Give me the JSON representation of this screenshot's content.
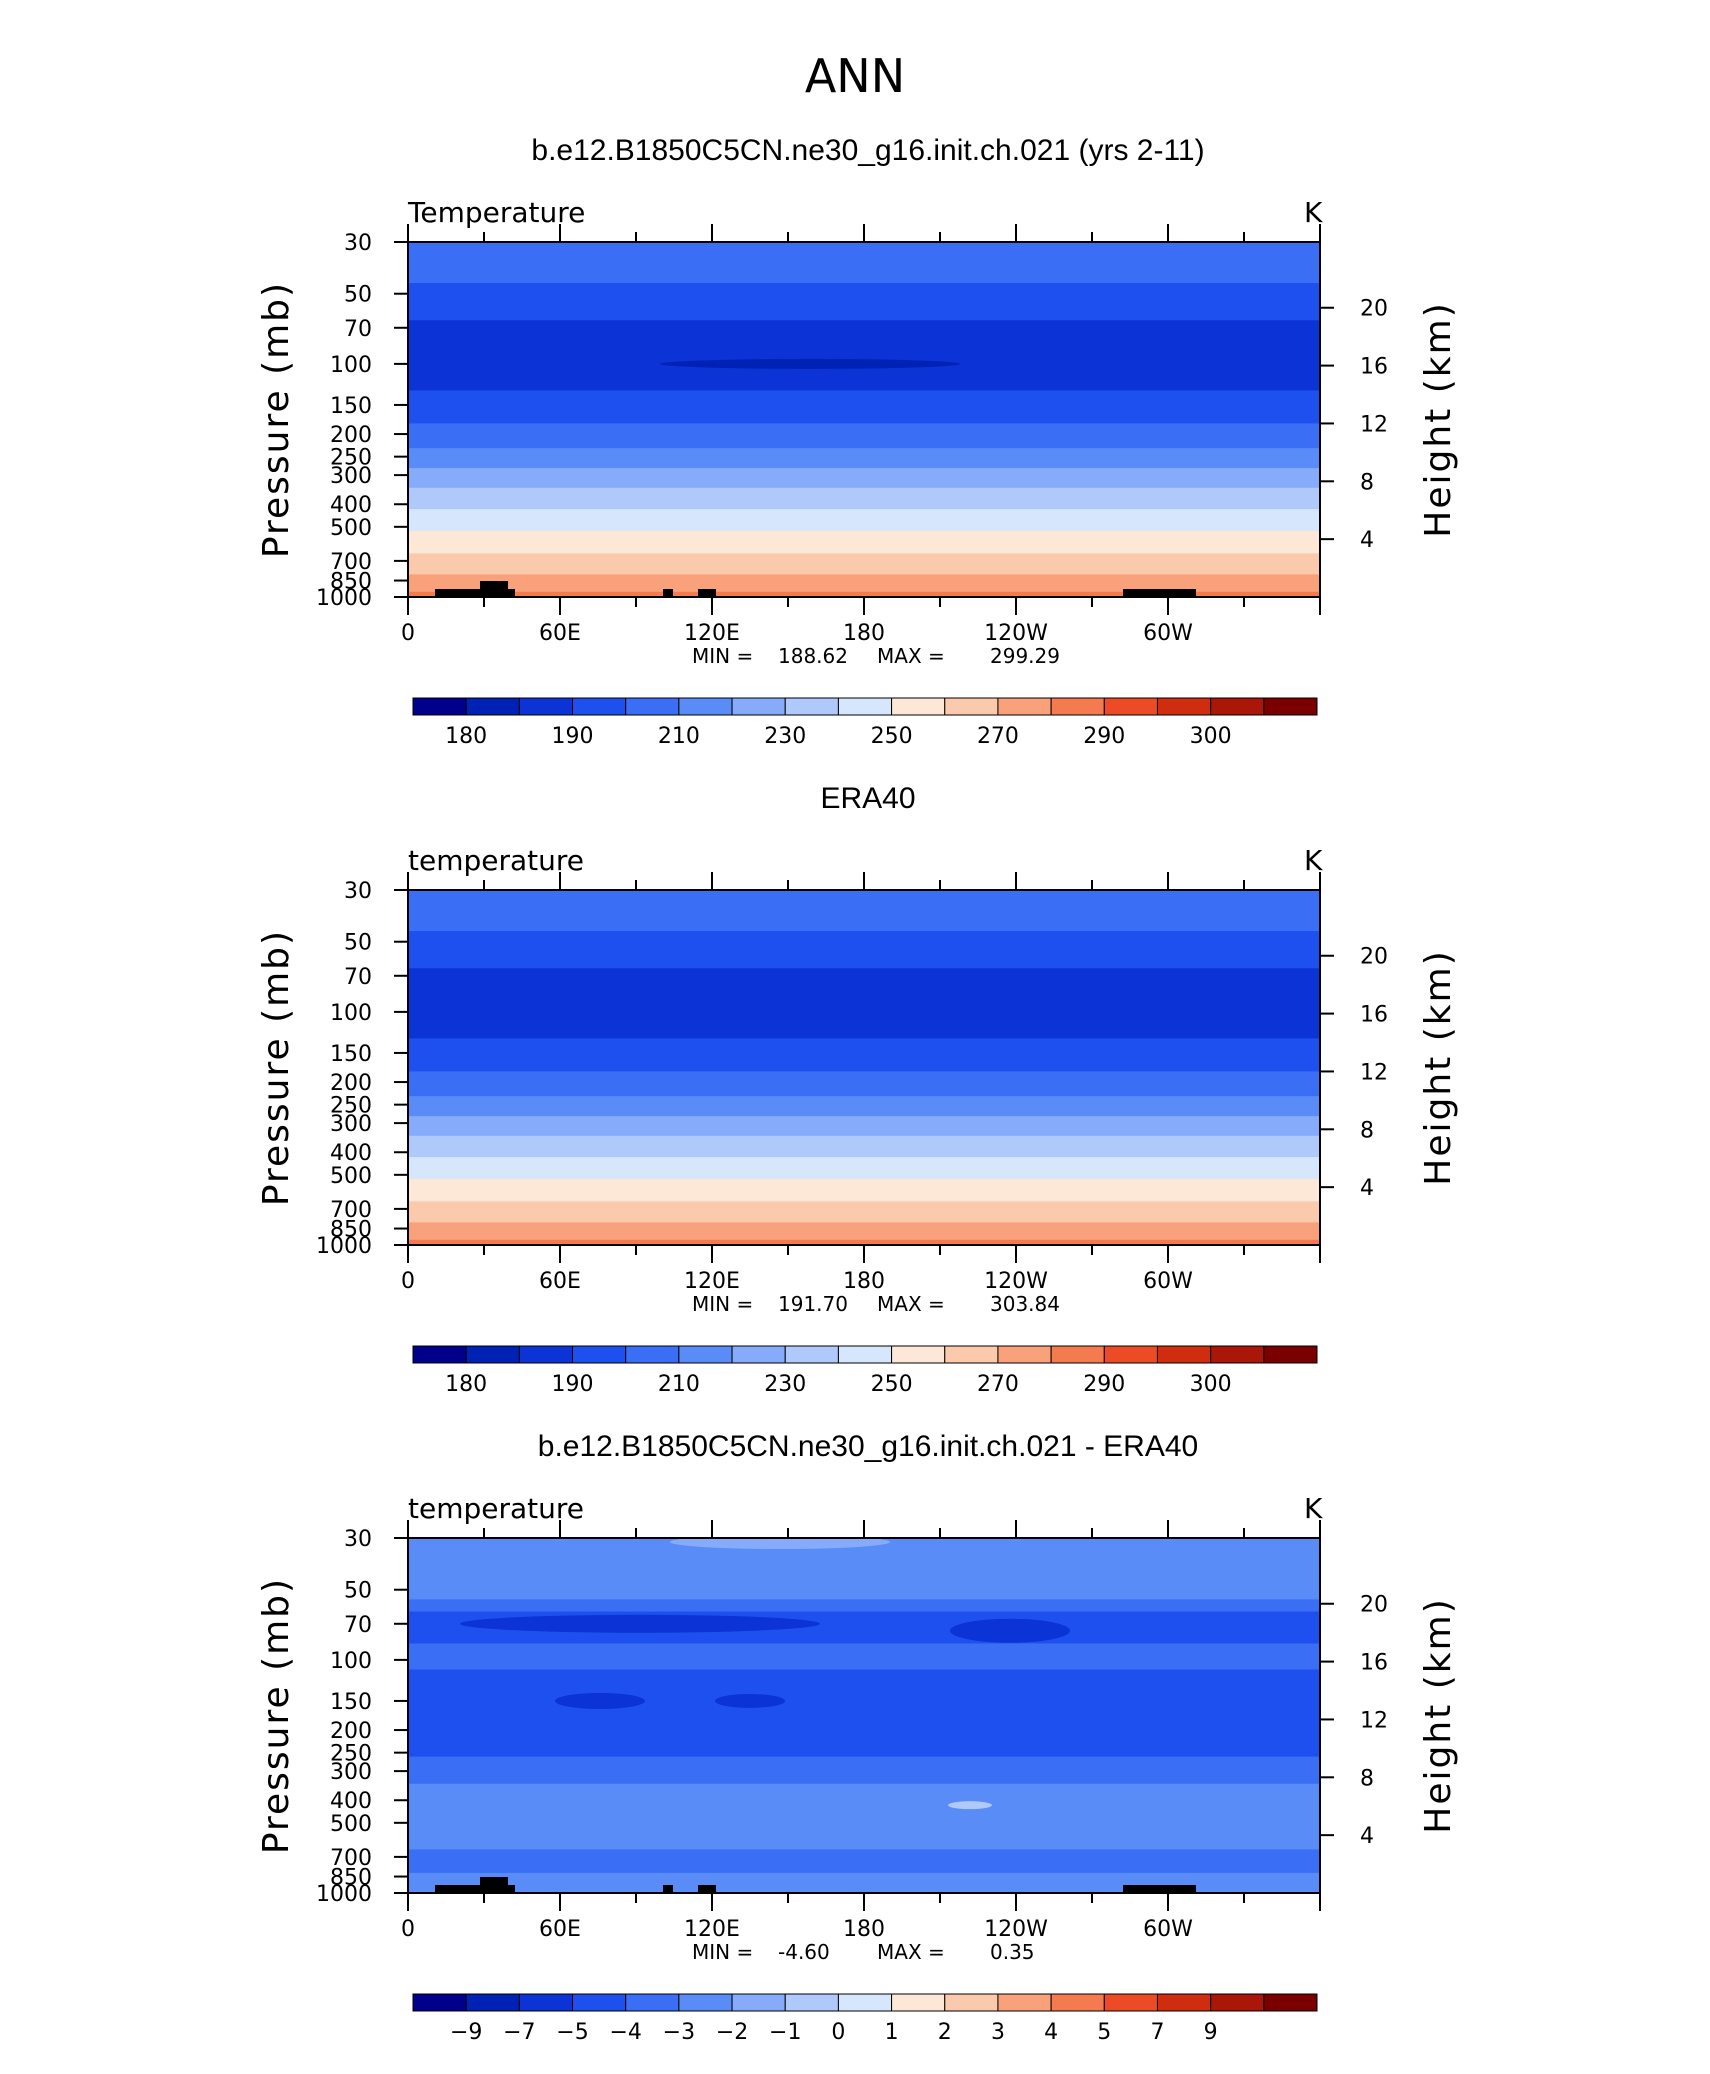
{
  "figure": {
    "title": "ANN"
  },
  "chart_data": [
    {
      "type": "contour",
      "title": "b.e12.B1850C5CN.ne30_g16.init.ch.021 (yrs 2-11)",
      "left_label": "Temperature",
      "right_label": "K",
      "ylabel": "Pressure  (mb)",
      "ylabel_right": "Height  (km)",
      "x_ticks": [
        "0",
        "60E",
        "120E",
        "180",
        "120W",
        "60W"
      ],
      "y_ticks": [
        "30",
        "50",
        "70",
        "100",
        "150",
        "200",
        "250",
        "300",
        "400",
        "500",
        "700",
        "850",
        "1000"
      ],
      "y_right_ticks": [
        "20",
        "16",
        "12",
        "8",
        "4"
      ],
      "min_max": {
        "min_label": "MIN",
        "min": "188.62",
        "max_label": "MAX",
        "max": "299.29"
      },
      "colorbar_labels": [
        "180",
        "190",
        "210",
        "230",
        "250",
        "270",
        "290",
        "300"
      ],
      "levels_by_pressure": [
        {
          "p": 30,
          "color_index": 4
        },
        {
          "p": 45,
          "color_index": 3
        },
        {
          "p": 65,
          "color_index": 2
        },
        {
          "p": 130,
          "color_index": 3
        },
        {
          "p": 180,
          "color_index": 4
        },
        {
          "p": 230,
          "color_index": 5
        },
        {
          "p": 280,
          "color_index": 6
        },
        {
          "p": 340,
          "color_index": 7
        },
        {
          "p": 420,
          "color_index": 8
        },
        {
          "p": 520,
          "color_index": 9
        },
        {
          "p": 650,
          "color_index": 10
        },
        {
          "p": 800,
          "color_index": 11
        },
        {
          "p": 950,
          "color_index": 12
        }
      ],
      "terrain": true
    },
    {
      "type": "contour",
      "title": "ERA40",
      "left_label": "temperature",
      "right_label": "K",
      "ylabel": "Pressure  (mb)",
      "ylabel_right": "Height  (km)",
      "x_ticks": [
        "0",
        "60E",
        "120E",
        "180",
        "120W",
        "60W"
      ],
      "y_ticks": [
        "30",
        "50",
        "70",
        "100",
        "150",
        "200",
        "250",
        "300",
        "400",
        "500",
        "700",
        "850",
        "1000"
      ],
      "y_right_ticks": [
        "20",
        "16",
        "12",
        "8",
        "4"
      ],
      "min_max": {
        "min_label": "MIN",
        "min": "191.70",
        "max_label": "MAX",
        "max": "303.84"
      },
      "colorbar_labels": [
        "180",
        "190",
        "210",
        "230",
        "250",
        "270",
        "290",
        "300"
      ],
      "levels_by_pressure": [
        {
          "p": 30,
          "color_index": 4
        },
        {
          "p": 45,
          "color_index": 3
        },
        {
          "p": 65,
          "color_index": 2
        },
        {
          "p": 130,
          "color_index": 3
        },
        {
          "p": 180,
          "color_index": 4
        },
        {
          "p": 230,
          "color_index": 5
        },
        {
          "p": 280,
          "color_index": 6
        },
        {
          "p": 340,
          "color_index": 7
        },
        {
          "p": 420,
          "color_index": 8
        },
        {
          "p": 520,
          "color_index": 9
        },
        {
          "p": 650,
          "color_index": 10
        },
        {
          "p": 800,
          "color_index": 11
        },
        {
          "p": 950,
          "color_index": 12
        }
      ],
      "terrain": false
    },
    {
      "type": "contour",
      "title": "b.e12.B1850C5CN.ne30_g16.init.ch.021 - ERA40",
      "left_label": "temperature",
      "right_label": "K",
      "ylabel": "Pressure  (mb)",
      "ylabel_right": "Height  (km)",
      "x_ticks": [
        "0",
        "60E",
        "120E",
        "180",
        "120W",
        "60W"
      ],
      "y_ticks": [
        "30",
        "50",
        "70",
        "100",
        "150",
        "200",
        "250",
        "300",
        "400",
        "500",
        "700",
        "850",
        "1000"
      ],
      "y_right_ticks": [
        "20",
        "16",
        "12",
        "8",
        "4"
      ],
      "min_max": {
        "min_label": "MIN",
        "min": "-4.60",
        "max_label": "MAX",
        "max": "0.35"
      },
      "colorbar_labels": [
        "−9",
        "−7",
        "−5",
        "−4",
        "−3",
        "−2",
        "−1",
        "0",
        "1",
        "2",
        "3",
        "4",
        "5",
        "7",
        "9"
      ],
      "levels_by_pressure": [
        {
          "p": 30,
          "color_index": 5
        },
        {
          "p": 55,
          "color_index": 4
        },
        {
          "p": 62,
          "color_index": 3
        },
        {
          "p": 85,
          "color_index": 4
        },
        {
          "p": 110,
          "color_index": 3
        },
        {
          "p": 260,
          "color_index": 4
        },
        {
          "p": 340,
          "color_index": 5
        },
        {
          "p": 650,
          "color_index": 4
        },
        {
          "p": 820,
          "color_index": 5
        }
      ],
      "terrain": true
    }
  ],
  "colorbar_colors": [
    "#00008b",
    "#0022b4",
    "#0b33d6",
    "#1e50f0",
    "#3a6ff5",
    "#5a8cf8",
    "#86abfa",
    "#b0c9fb",
    "#d6e6fc",
    "#fde8d8",
    "#fbc9ac",
    "#f8a17b",
    "#f47a4f",
    "#ec4b25",
    "#d02c10",
    "#aa1608",
    "#7a0000"
  ]
}
